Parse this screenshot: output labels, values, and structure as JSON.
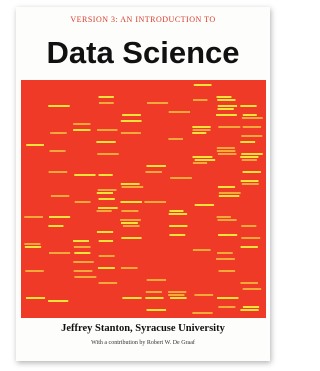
{
  "cover": {
    "subtitle": "VERSION 3: AN INTRODUCTION TO",
    "title": "Data Science",
    "author": "Jeffrey Stanton, Syracuse University",
    "contribution": "With a contribution by Robert W. De Graaf"
  }
}
